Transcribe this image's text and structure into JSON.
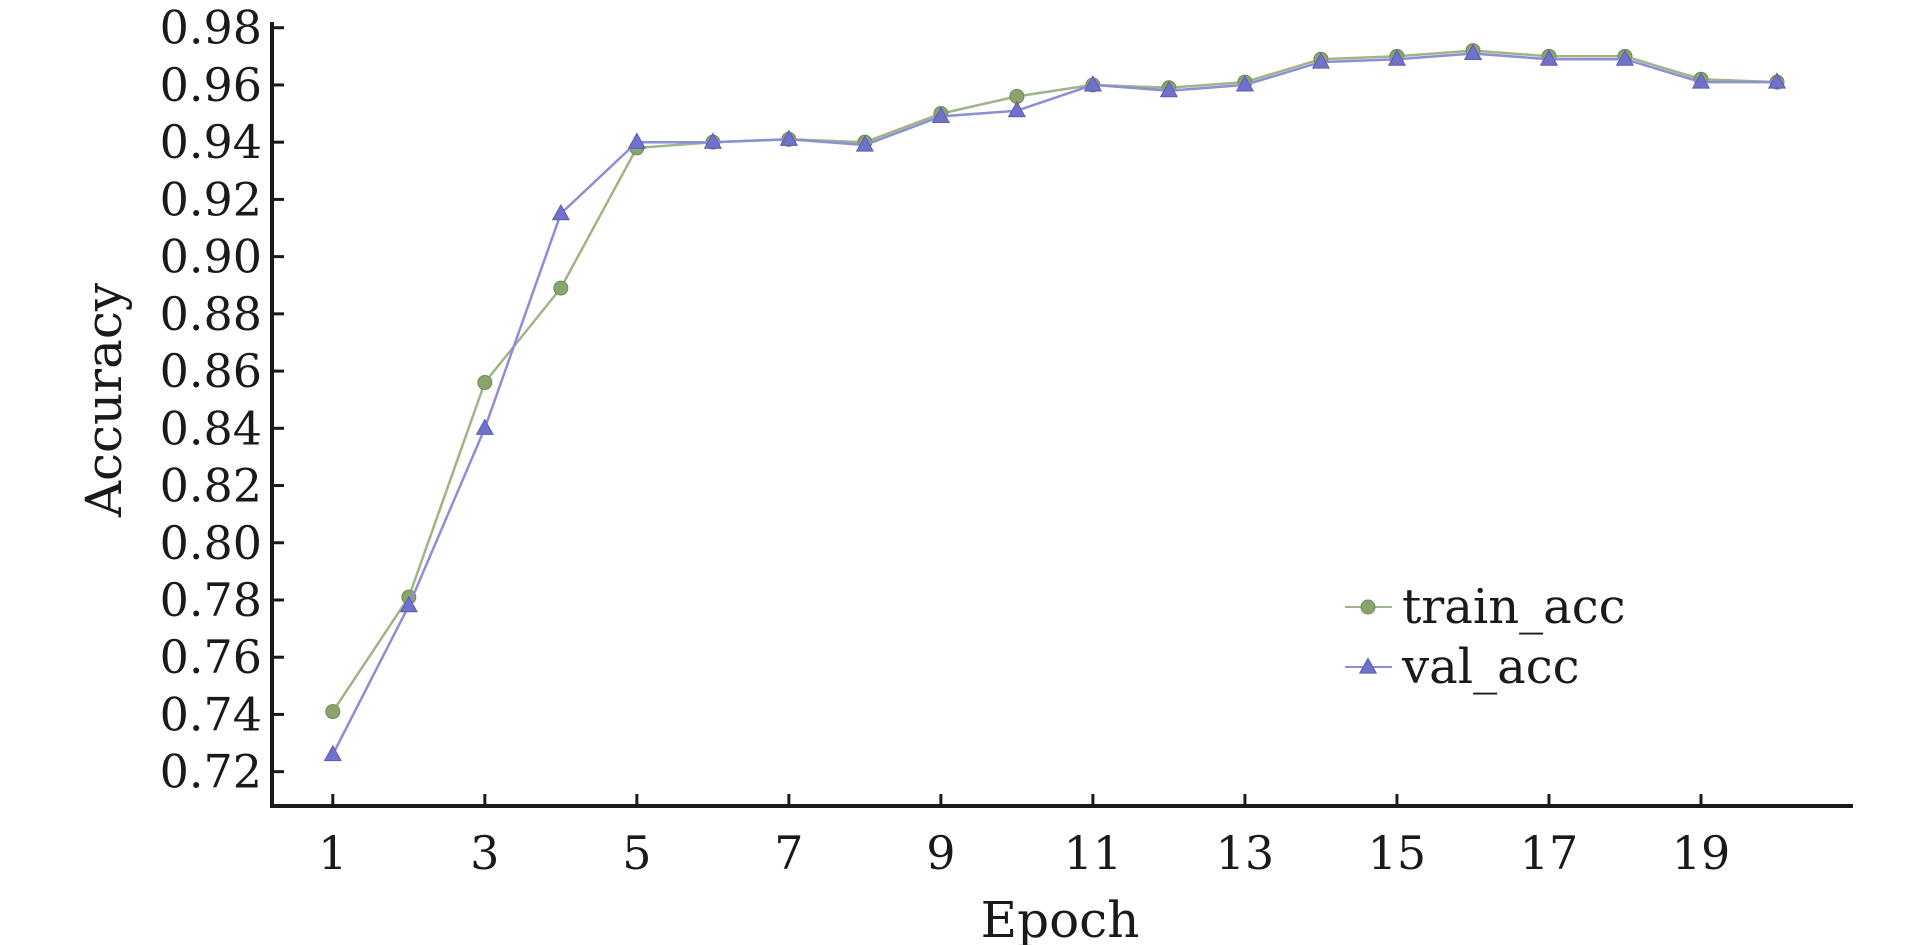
{
  "chart_data": {
    "type": "line",
    "xlabel": "Epoch",
    "ylabel": "Accuracy",
    "xlim": [
      0.2,
      21
    ],
    "ylim": [
      0.708,
      0.982
    ],
    "x_ticks": [
      1,
      3,
      5,
      7,
      9,
      11,
      13,
      15,
      17,
      19
    ],
    "x_tick_labels": [
      "1",
      "3",
      "5",
      "7",
      "9",
      "11",
      "13",
      "15",
      "17",
      "19"
    ],
    "y_ticks": [
      0.72,
      0.74,
      0.76,
      0.78,
      0.8,
      0.82,
      0.84,
      0.86,
      0.88,
      0.9,
      0.92,
      0.94,
      0.96,
      0.98
    ],
    "y_tick_labels": [
      "0.72",
      "0.74",
      "0.76",
      "0.78",
      "0.80",
      "0.82",
      "0.84",
      "0.86",
      "0.88",
      "0.90",
      "0.92",
      "0.94",
      "0.96",
      "0.98"
    ],
    "grid": false,
    "legend_position": "right",
    "x": [
      1,
      2,
      3,
      4,
      5,
      6,
      7,
      8,
      9,
      10,
      11,
      12,
      13,
      14,
      15,
      16,
      17,
      18,
      19,
      20
    ],
    "series": [
      {
        "name": "train_acc",
        "marker": "circle",
        "color": "#8aa46e",
        "line_color": "#9fb487",
        "values": [
          0.741,
          0.781,
          0.856,
          0.889,
          0.938,
          0.94,
          0.941,
          0.94,
          0.95,
          0.956,
          0.96,
          0.959,
          0.961,
          0.969,
          0.97,
          0.972,
          0.97,
          0.97,
          0.962,
          0.961
        ]
      },
      {
        "name": "val_acc",
        "marker": "triangle",
        "color": "#6f72c8",
        "line_color": "#8c8ed6",
        "values": [
          0.726,
          0.778,
          0.84,
          0.915,
          0.94,
          0.94,
          0.941,
          0.939,
          0.949,
          0.951,
          0.96,
          0.958,
          0.96,
          0.968,
          0.969,
          0.971,
          0.969,
          0.969,
          0.961,
          0.961
        ]
      }
    ]
  }
}
